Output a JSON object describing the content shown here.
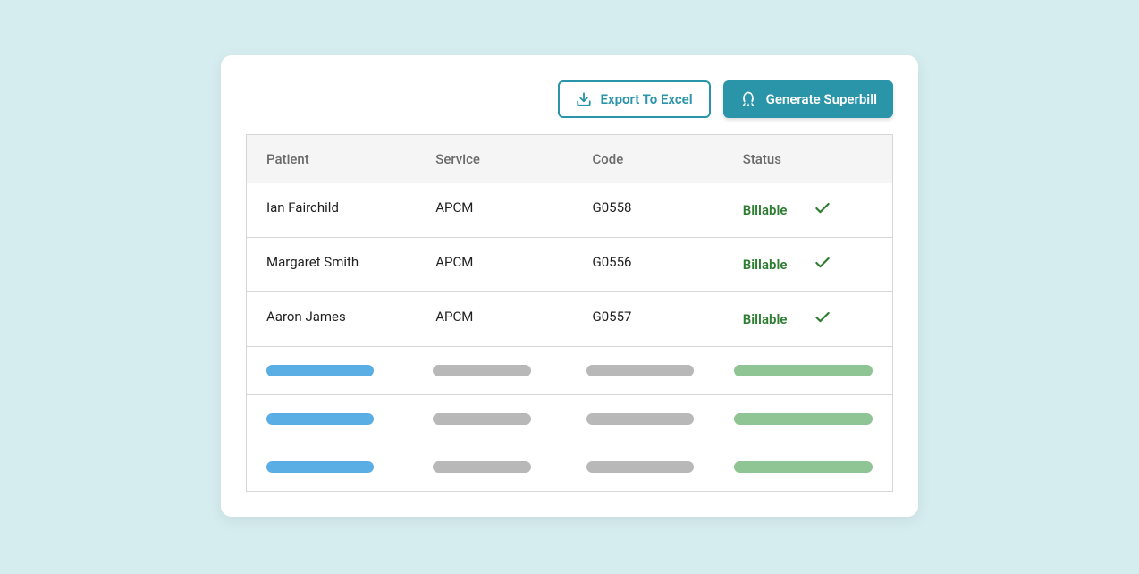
{
  "toolbar": {
    "export_label": "Export To Excel",
    "generate_label": "Generate Superbill"
  },
  "table": {
    "columns": {
      "patient": "Patient",
      "service": "Service",
      "code": "Code",
      "status": "Status"
    },
    "rows": [
      {
        "patient": "Ian Fairchild",
        "service": "APCM",
        "code": "G0558",
        "status": "Billable"
      },
      {
        "patient": "Margaret Smith",
        "service": "APCM",
        "code": "G0556",
        "status": "Billable"
      },
      {
        "patient": "Aaron James",
        "service": "APCM",
        "code": "G0557",
        "status": "Billable"
      }
    ],
    "skeleton_row_count": 3
  },
  "colors": {
    "page_bg": "#d6edf0",
    "card_bg": "#ffffff",
    "accent": "#2a94a8",
    "header_bg": "#f5f5f5",
    "border": "#d6d6d6",
    "text": "#1f1f1f",
    "muted_text": "#6b6b6b",
    "status_ok": "#2e7d32",
    "pill_blue": "#5aaee3",
    "pill_gray": "#b8b8b8",
    "pill_green": "#8fc494"
  }
}
